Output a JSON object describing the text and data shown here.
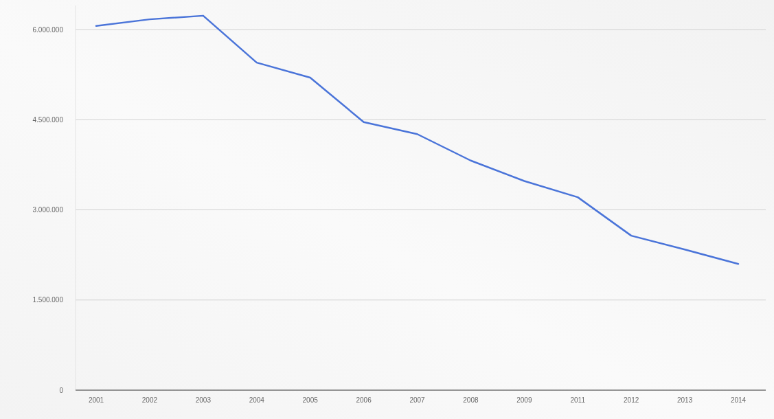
{
  "chart_data": {
    "type": "line",
    "categories": [
      "2001",
      "2002",
      "2003",
      "2004",
      "2005",
      "2006",
      "2007",
      "2008",
      "2009",
      "2011",
      "2012",
      "2013",
      "2014"
    ],
    "series": [
      {
        "color": "#4a74d9",
        "values": [
          6060000,
          6170000,
          6230000,
          5450000,
          5200000,
          4460000,
          4260000,
          3820000,
          3480000,
          3210000,
          2570000,
          2340000,
          2100000
        ]
      }
    ],
    "ylim": [
      0,
      6400000
    ],
    "yticks": [
      {
        "value": 0,
        "label": "0"
      },
      {
        "value": 1500000,
        "label": "1.500.000"
      },
      {
        "value": 3000000,
        "label": "3.000.000"
      },
      {
        "value": 4500000,
        "label": "4.500.000"
      },
      {
        "value": 6000000,
        "label": "6.000.000"
      }
    ],
    "grid": "y"
  }
}
